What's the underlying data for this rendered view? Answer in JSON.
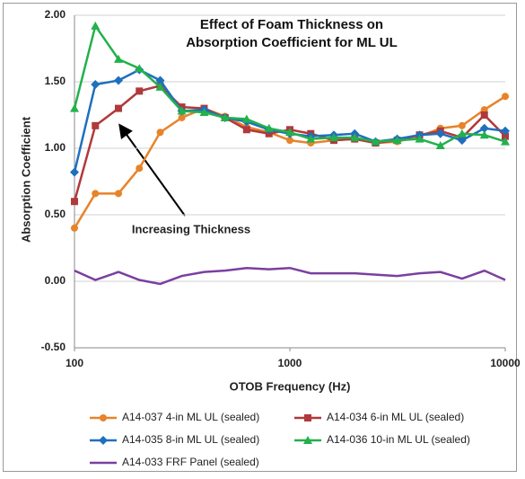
{
  "chart_data": {
    "type": "line",
    "title": "Effect of Foam Thickness on Absorption Coefficient for ML UL",
    "xlabel": "OTOB Frequency (Hz)",
    "ylabel": "Absorption Coefficient",
    "annotation": "Increasing Thickness",
    "xscale": "log",
    "grid": true,
    "legend": "bottom",
    "x": [
      100,
      125,
      160,
      200,
      250,
      315,
      400,
      500,
      630,
      800,
      1000,
      1250,
      1600,
      2000,
      2500,
      3150,
      4000,
      5000,
      6300,
      8000,
      10000
    ],
    "xlim": [
      100,
      10000
    ],
    "xticks": [
      100,
      1000,
      10000
    ],
    "ylim": [
      -0.5,
      2
    ],
    "yticks": [
      {
        "value": -0.5,
        "label": "-0.50"
      },
      {
        "value": 0,
        "label": "0.00"
      },
      {
        "value": 0.5,
        "label": "0.50"
      },
      {
        "value": 1,
        "label": "1.00"
      },
      {
        "value": 1.5,
        "label": "1.50"
      },
      {
        "value": 2,
        "label": "2.00"
      }
    ],
    "series": [
      {
        "name": "A14-037 4-in ML UL (sealed)",
        "color": "#e8832a",
        "marker": "circle",
        "values": [
          0.4,
          0.66,
          0.66,
          0.85,
          1.12,
          1.23,
          1.3,
          1.24,
          1.16,
          1.12,
          1.06,
          1.04,
          1.06,
          1.07,
          1.04,
          1.05,
          1.09,
          1.15,
          1.17,
          1.29,
          1.39
        ]
      },
      {
        "name": "A14-034 6-in ML UL (sealed)",
        "color": "#b0393b",
        "marker": "square",
        "values": [
          0.6,
          1.17,
          1.3,
          1.43,
          1.47,
          1.31,
          1.3,
          1.23,
          1.14,
          1.11,
          1.14,
          1.11,
          1.06,
          1.07,
          1.04,
          1.06,
          1.1,
          1.13,
          1.08,
          1.25,
          1.09
        ]
      },
      {
        "name": "A14-035 8-in ML UL (sealed)",
        "color": "#1f6fbf",
        "marker": "diamond",
        "values": [
          0.82,
          1.48,
          1.51,
          1.59,
          1.51,
          1.28,
          1.29,
          1.23,
          1.2,
          1.14,
          1.11,
          1.09,
          1.1,
          1.11,
          1.05,
          1.07,
          1.1,
          1.11,
          1.06,
          1.15,
          1.13
        ]
      },
      {
        "name": "A14-036 10-in ML UL (sealed)",
        "color": "#22b14c",
        "marker": "triangle",
        "values": [
          1.3,
          1.92,
          1.67,
          1.6,
          1.46,
          1.28,
          1.27,
          1.23,
          1.22,
          1.15,
          1.12,
          1.07,
          1.08,
          1.08,
          1.05,
          1.06,
          1.07,
          1.02,
          1.11,
          1.1,
          1.05
        ]
      },
      {
        "name": "A14-033 FRF Panel (sealed)",
        "color": "#7b3fa0",
        "marker": "none",
        "values": [
          0.08,
          0.01,
          0.07,
          0.01,
          -0.02,
          0.04,
          0.07,
          0.08,
          0.1,
          0.09,
          0.1,
          0.06,
          0.06,
          0.06,
          0.05,
          0.04,
          0.06,
          0.07,
          0.02,
          0.08,
          0.01
        ]
      }
    ]
  }
}
